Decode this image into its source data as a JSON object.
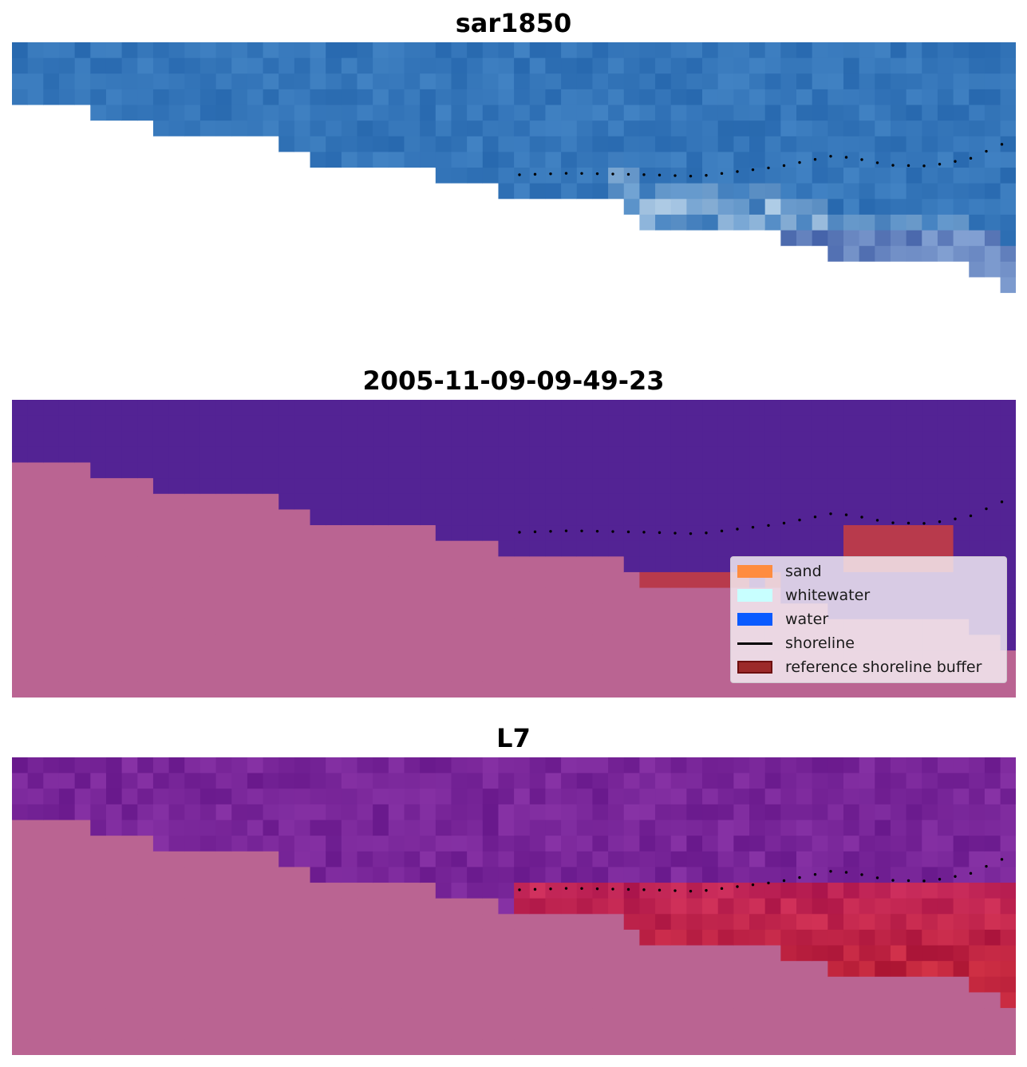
{
  "panels": [
    {
      "title": "sar1850"
    },
    {
      "title": "2005-11-09-09-49-23"
    },
    {
      "title": "L7"
    }
  ],
  "legend": {
    "items": [
      {
        "label": "sand",
        "kind": "patch",
        "color": "#ff8c3f"
      },
      {
        "label": "whitewater",
        "kind": "patch",
        "color": "#c8ffff"
      },
      {
        "label": "water",
        "kind": "patch",
        "color": "#0a5aff"
      },
      {
        "label": "shoreline",
        "kind": "line",
        "color": "#000000"
      },
      {
        "label": "reference shoreline buffer",
        "kind": "patch",
        "color": "#9c2a2a",
        "edge": "#6e0f0f"
      }
    ]
  },
  "colors": {
    "nodata_sar": "#ffffff",
    "land_mask": "#ba6492",
    "water_class": "#532394",
    "buffer": "#b83a4c",
    "l7_water": "#721f94",
    "l7_buffer": "#c41234"
  }
}
